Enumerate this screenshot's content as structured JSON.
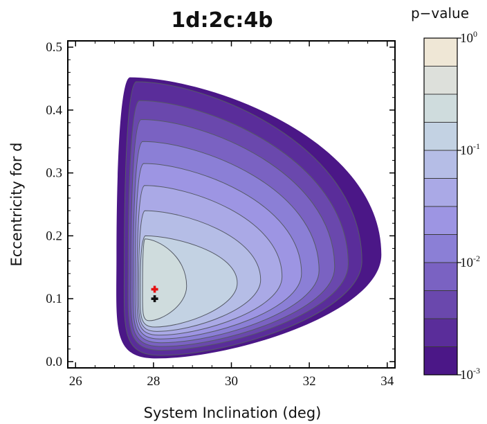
{
  "chart_data": {
    "type": "contour",
    "title": "1d:2c:4b",
    "xlabel": "System Inclination (deg)",
    "ylabel": "Eccentricity for d",
    "xlim": [
      25.8,
      34.2
    ],
    "ylim": [
      -0.01,
      0.51
    ],
    "x_ticks": [
      {
        "value": 26,
        "label": "26"
      },
      {
        "value": 28,
        "label": "28"
      },
      {
        "value": 30,
        "label": "30"
      },
      {
        "value": 32,
        "label": "32"
      },
      {
        "value": 34,
        "label": "34"
      }
    ],
    "y_ticks": [
      {
        "value": 0.0,
        "label": "0.0"
      },
      {
        "value": 0.1,
        "label": "0.1"
      },
      {
        "value": 0.2,
        "label": "0.2"
      },
      {
        "value": 0.3,
        "label": "0.3"
      },
      {
        "value": 0.4,
        "label": "0.4"
      },
      {
        "value": 0.5,
        "label": "0.5"
      }
    ],
    "colorbar": {
      "title": "p−value",
      "scale": "log",
      "range": [
        0.001,
        1
      ],
      "ticks": [
        {
          "value": 1,
          "base": "10",
          "exp": "0"
        },
        {
          "value": 0.1,
          "base": "10",
          "exp": "-1"
        },
        {
          "value": 0.01,
          "base": "10",
          "exp": "-2"
        },
        {
          "value": 0.001,
          "base": "10",
          "exp": "-3"
        }
      ],
      "levels": [
        "#4b1787",
        "#5a2d9a",
        "#6a48ad",
        "#7a62c2",
        "#8b7fd6",
        "#9d95e3",
        "#aaa9e6",
        "#b5bde6",
        "#c3d2e3",
        "#cfdcdd",
        "#dde0db",
        "#efe7d6"
      ]
    },
    "contour_levels": [
      {
        "p": 0.0012,
        "x_min": 27.05,
        "x_max": 33.85,
        "y_top": 0.452,
        "y_bottom": 0.005,
        "y_center": 0.17,
        "color": "#4b1787"
      },
      {
        "p": 0.0019,
        "x_min": 27.25,
        "x_max": 33.35,
        "y_top": 0.445,
        "y_bottom": 0.01,
        "y_center": 0.16,
        "color": "#5a2d9a"
      },
      {
        "p": 0.003,
        "x_min": 27.35,
        "x_max": 33.0,
        "y_top": 0.415,
        "y_bottom": 0.018,
        "y_center": 0.155,
        "color": "#6a48ad"
      },
      {
        "p": 0.0048,
        "x_min": 27.42,
        "x_max": 32.65,
        "y_top": 0.385,
        "y_bottom": 0.024,
        "y_center": 0.15,
        "color": "#7a62c2"
      },
      {
        "p": 0.0076,
        "x_min": 27.48,
        "x_max": 32.25,
        "y_top": 0.35,
        "y_bottom": 0.03,
        "y_center": 0.145,
        "color": "#8b7fd6"
      },
      {
        "p": 0.012,
        "x_min": 27.53,
        "x_max": 31.8,
        "y_top": 0.315,
        "y_bottom": 0.036,
        "y_center": 0.14,
        "color": "#9d95e3"
      },
      {
        "p": 0.019,
        "x_min": 27.58,
        "x_max": 31.3,
        "y_top": 0.28,
        "y_bottom": 0.042,
        "y_center": 0.135,
        "color": "#aaa9e6"
      },
      {
        "p": 0.03,
        "x_min": 27.62,
        "x_max": 30.75,
        "y_top": 0.24,
        "y_bottom": 0.048,
        "y_center": 0.13,
        "color": "#b5bde6"
      },
      {
        "p": 0.048,
        "x_min": 27.66,
        "x_max": 30.15,
        "y_top": 0.2,
        "y_bottom": 0.055,
        "y_center": 0.125,
        "color": "#c3d2e3"
      },
      {
        "p": 0.076,
        "x_min": 27.72,
        "x_max": 28.85,
        "y_top": 0.195,
        "y_bottom": 0.065,
        "y_center": 0.12,
        "color": "#cfdcdd"
      }
    ],
    "markers": [
      {
        "name": "red-marker",
        "x": 28.03,
        "y": 0.115,
        "color": "#e51212"
      },
      {
        "name": "black-marker",
        "x": 28.03,
        "y": 0.1,
        "color": "#111111"
      }
    ]
  }
}
